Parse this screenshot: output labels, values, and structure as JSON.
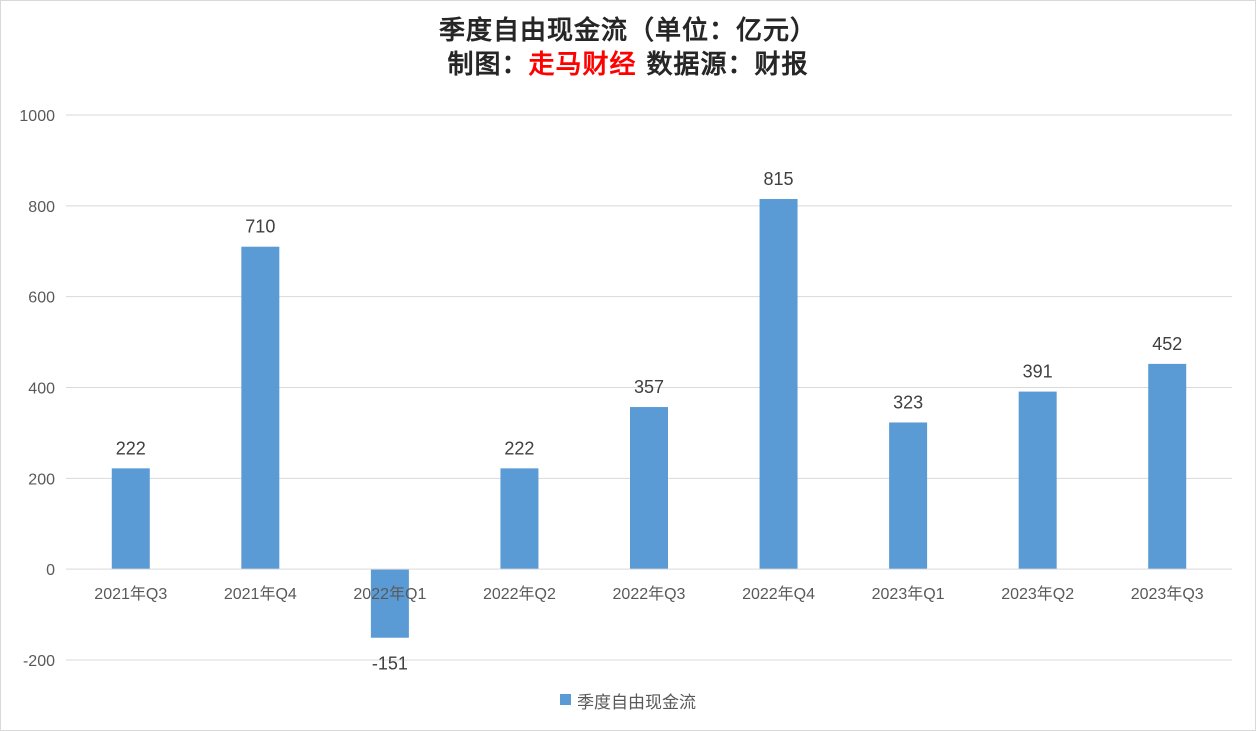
{
  "colors": {
    "bar": "#5b9bd5",
    "accent": "#ff0000",
    "grid": "#d9d9d9",
    "axis_text": "#595959",
    "label_text": "#404040"
  },
  "title": {
    "line1": "季度自由现金流（单位：亿元）",
    "line2_prefix": "制图：",
    "line2_accent": "走马财经",
    "line2_suffix": " 数据源：财报"
  },
  "chart_data": {
    "type": "bar",
    "categories": [
      "2021年Q3",
      "2021年Q4",
      "2022年Q1",
      "2022年Q2",
      "2022年Q3",
      "2022年Q4",
      "2023年Q1",
      "2023年Q2",
      "2023年Q3"
    ],
    "series": [
      {
        "name": "季度自由现金流",
        "values": [
          222,
          710,
          -151,
          222,
          357,
          815,
          323,
          391,
          452
        ]
      }
    ],
    "data_labels": [
      "222",
      "710",
      "-151",
      "222",
      "357",
      "815",
      "323",
      "391",
      "452"
    ],
    "ylim": [
      -200,
      1000
    ],
    "yticks": [
      -200,
      0,
      200,
      400,
      600,
      800,
      1000
    ],
    "grid": true,
    "legend_position": "bottom",
    "xlabel": "",
    "ylabel": ""
  }
}
